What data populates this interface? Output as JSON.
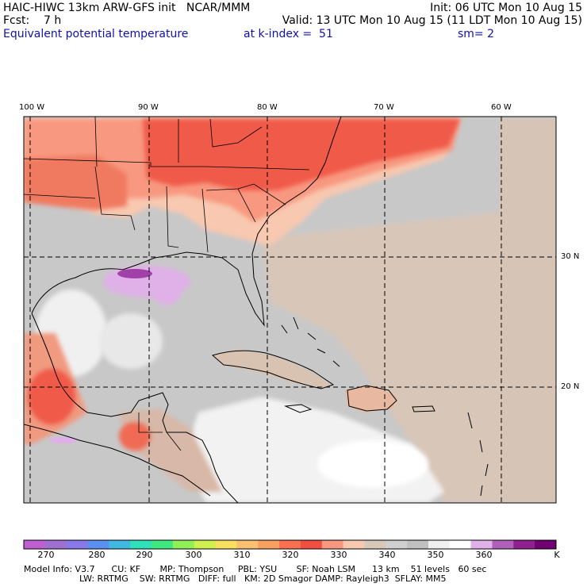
{
  "header": {
    "line1_left": "HAIC-HIWC 13km ARW-GFS init   NCAR/MMM",
    "line1_right": "Init: 06 UTC Mon 10 Aug 15",
    "line2_left": "Fcst:    7 h",
    "line2_right": "Valid: 13 UTC Mon 10 Aug 15 (11 LDT Mon 10 Aug 15)",
    "field_name": "Equivalent potential temperature",
    "level": "at k-index =  51",
    "smoothing": "sm= 2"
  },
  "lon_labels": [
    "100 W",
    "90 W",
    "80 W",
    "70 W",
    "60 W"
  ],
  "lat_labels": [
    "30 N",
    "20 N"
  ],
  "colorbar": {
    "labels": [
      "270",
      "280",
      "290",
      "300",
      "310",
      "320",
      "330",
      "340",
      "350",
      "360"
    ],
    "unit": "K",
    "colors": [
      "#c060d0",
      "#a070d0",
      "#8878e8",
      "#5a90f0",
      "#40b8e0",
      "#30e0b8",
      "#40e880",
      "#90f058",
      "#d0f050",
      "#f8e060",
      "#f8c070",
      "#f8a060",
      "#f87050",
      "#f05040",
      "#f89880",
      "#f8c8b0",
      "#d8c8b8",
      "#d0d0d0",
      "#c0c0c0",
      "#f0f0f0",
      "#ffffff",
      "#e0b0e8",
      "#b060b8",
      "#902090",
      "#700070"
    ]
  },
  "footer": {
    "line1": "Model Info: V3.7      CU: KF       MP: Thompson     PBL: YSU       SF: Noah LSM      13 km    51 levels   60 sec",
    "line2": "LW: RRTMG    SW: RRTMG   DIFF: full   KM: 2D Smagor DAMP: Rayleigh3  SFLAY: MM5"
  }
}
